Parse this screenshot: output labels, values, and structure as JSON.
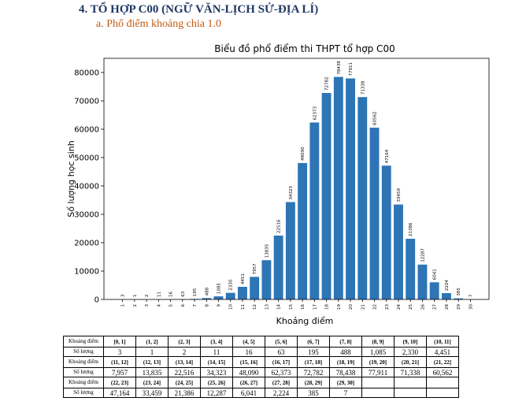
{
  "section": {
    "heading": "4.  TỔ HỢP C00 (NGỮ VĂN-LỊCH SỬ-ĐỊA LÍ)",
    "subheading": "a.  Phổ điểm khoảng chia 1.0"
  },
  "chart_data": {
    "type": "bar",
    "title": "Biểu đồ phổ điểm thi THPT tổ hợp C00",
    "xlabel": "Khoảng điểm",
    "ylabel": "Số lượng học sinh",
    "ylim": [
      0,
      85000
    ],
    "y_ticks": [
      "0",
      "10000",
      "20000",
      "30000",
      "40000",
      "50000",
      "60000",
      "70000",
      "80000"
    ],
    "grid": false,
    "categories": [
      "1",
      "2",
      "3",
      "4",
      "5",
      "6",
      "7",
      "8",
      "9",
      "10",
      "11",
      "12",
      "13",
      "14",
      "15",
      "16",
      "17",
      "18",
      "19",
      "20",
      "21",
      "22",
      "23",
      "24",
      "25",
      "26",
      "27",
      "28",
      "29",
      "30"
    ],
    "values": [
      3,
      1,
      2,
      11,
      16,
      63,
      195,
      488,
      1085,
      2330,
      4451,
      7957,
      13835,
      22516,
      34323,
      48090,
      62373,
      72782,
      78438,
      77911,
      71338,
      60562,
      47164,
      33459,
      21386,
      12287,
      6041,
      2224,
      385,
      7
    ],
    "data_labels": [
      "3",
      "1",
      "2",
      "11",
      "16",
      "63",
      "195",
      "488",
      "1085",
      "2330",
      "4451",
      "7957",
      "13835",
      "22516",
      "34323",
      "48090",
      "62373",
      "72782",
      "78438",
      "77911",
      "71338",
      "60562",
      "47164",
      "33459",
      "21386",
      "12287",
      "6041",
      "2224",
      "385",
      "7"
    ],
    "bar_color": "#2e75b6"
  },
  "table": {
    "row_label_range": "Khoảng điểm",
    "row_label_count": "Số lượng",
    "groups": [
      {
        "ranges": [
          "[0, 1]",
          "(1, 2]",
          "(2, 3]",
          "(3, 4]",
          "(4, 5]",
          "(5, 6]",
          "(6, 7]",
          "(7, 8]",
          "(8, 9]",
          "(9, 10]",
          "(10, 11]"
        ],
        "counts": [
          "3",
          "1",
          "2",
          "11",
          "16",
          "63",
          "195",
          "488",
          "1,085",
          "2,330",
          "4,451"
        ]
      },
      {
        "ranges": [
          "(11, 12]",
          "(12, 13]",
          "(13, 14]",
          "(14, 15]",
          "(15, 16]",
          "(16, 17]",
          "(17, 18]",
          "(18, 19]",
          "(19, 20]",
          "(20, 21]",
          "(21, 22]"
        ],
        "counts": [
          "7,957",
          "13,835",
          "22,516",
          "34,323",
          "48,090",
          "62,373",
          "72,782",
          "78,438",
          "77,911",
          "71,338",
          "60,562"
        ]
      },
      {
        "ranges": [
          "(22, 23]",
          "(23, 24]",
          "(24, 25]",
          "(25, 26]",
          "(26, 27]",
          "(27, 28]",
          "(28, 29]",
          "(29, 30]",
          "",
          "",
          ""
        ],
        "counts": [
          "47,164",
          "33,459",
          "21,386",
          "12,287",
          "6,041",
          "2,224",
          "385",
          "7",
          "",
          "",
          ""
        ]
      }
    ]
  }
}
